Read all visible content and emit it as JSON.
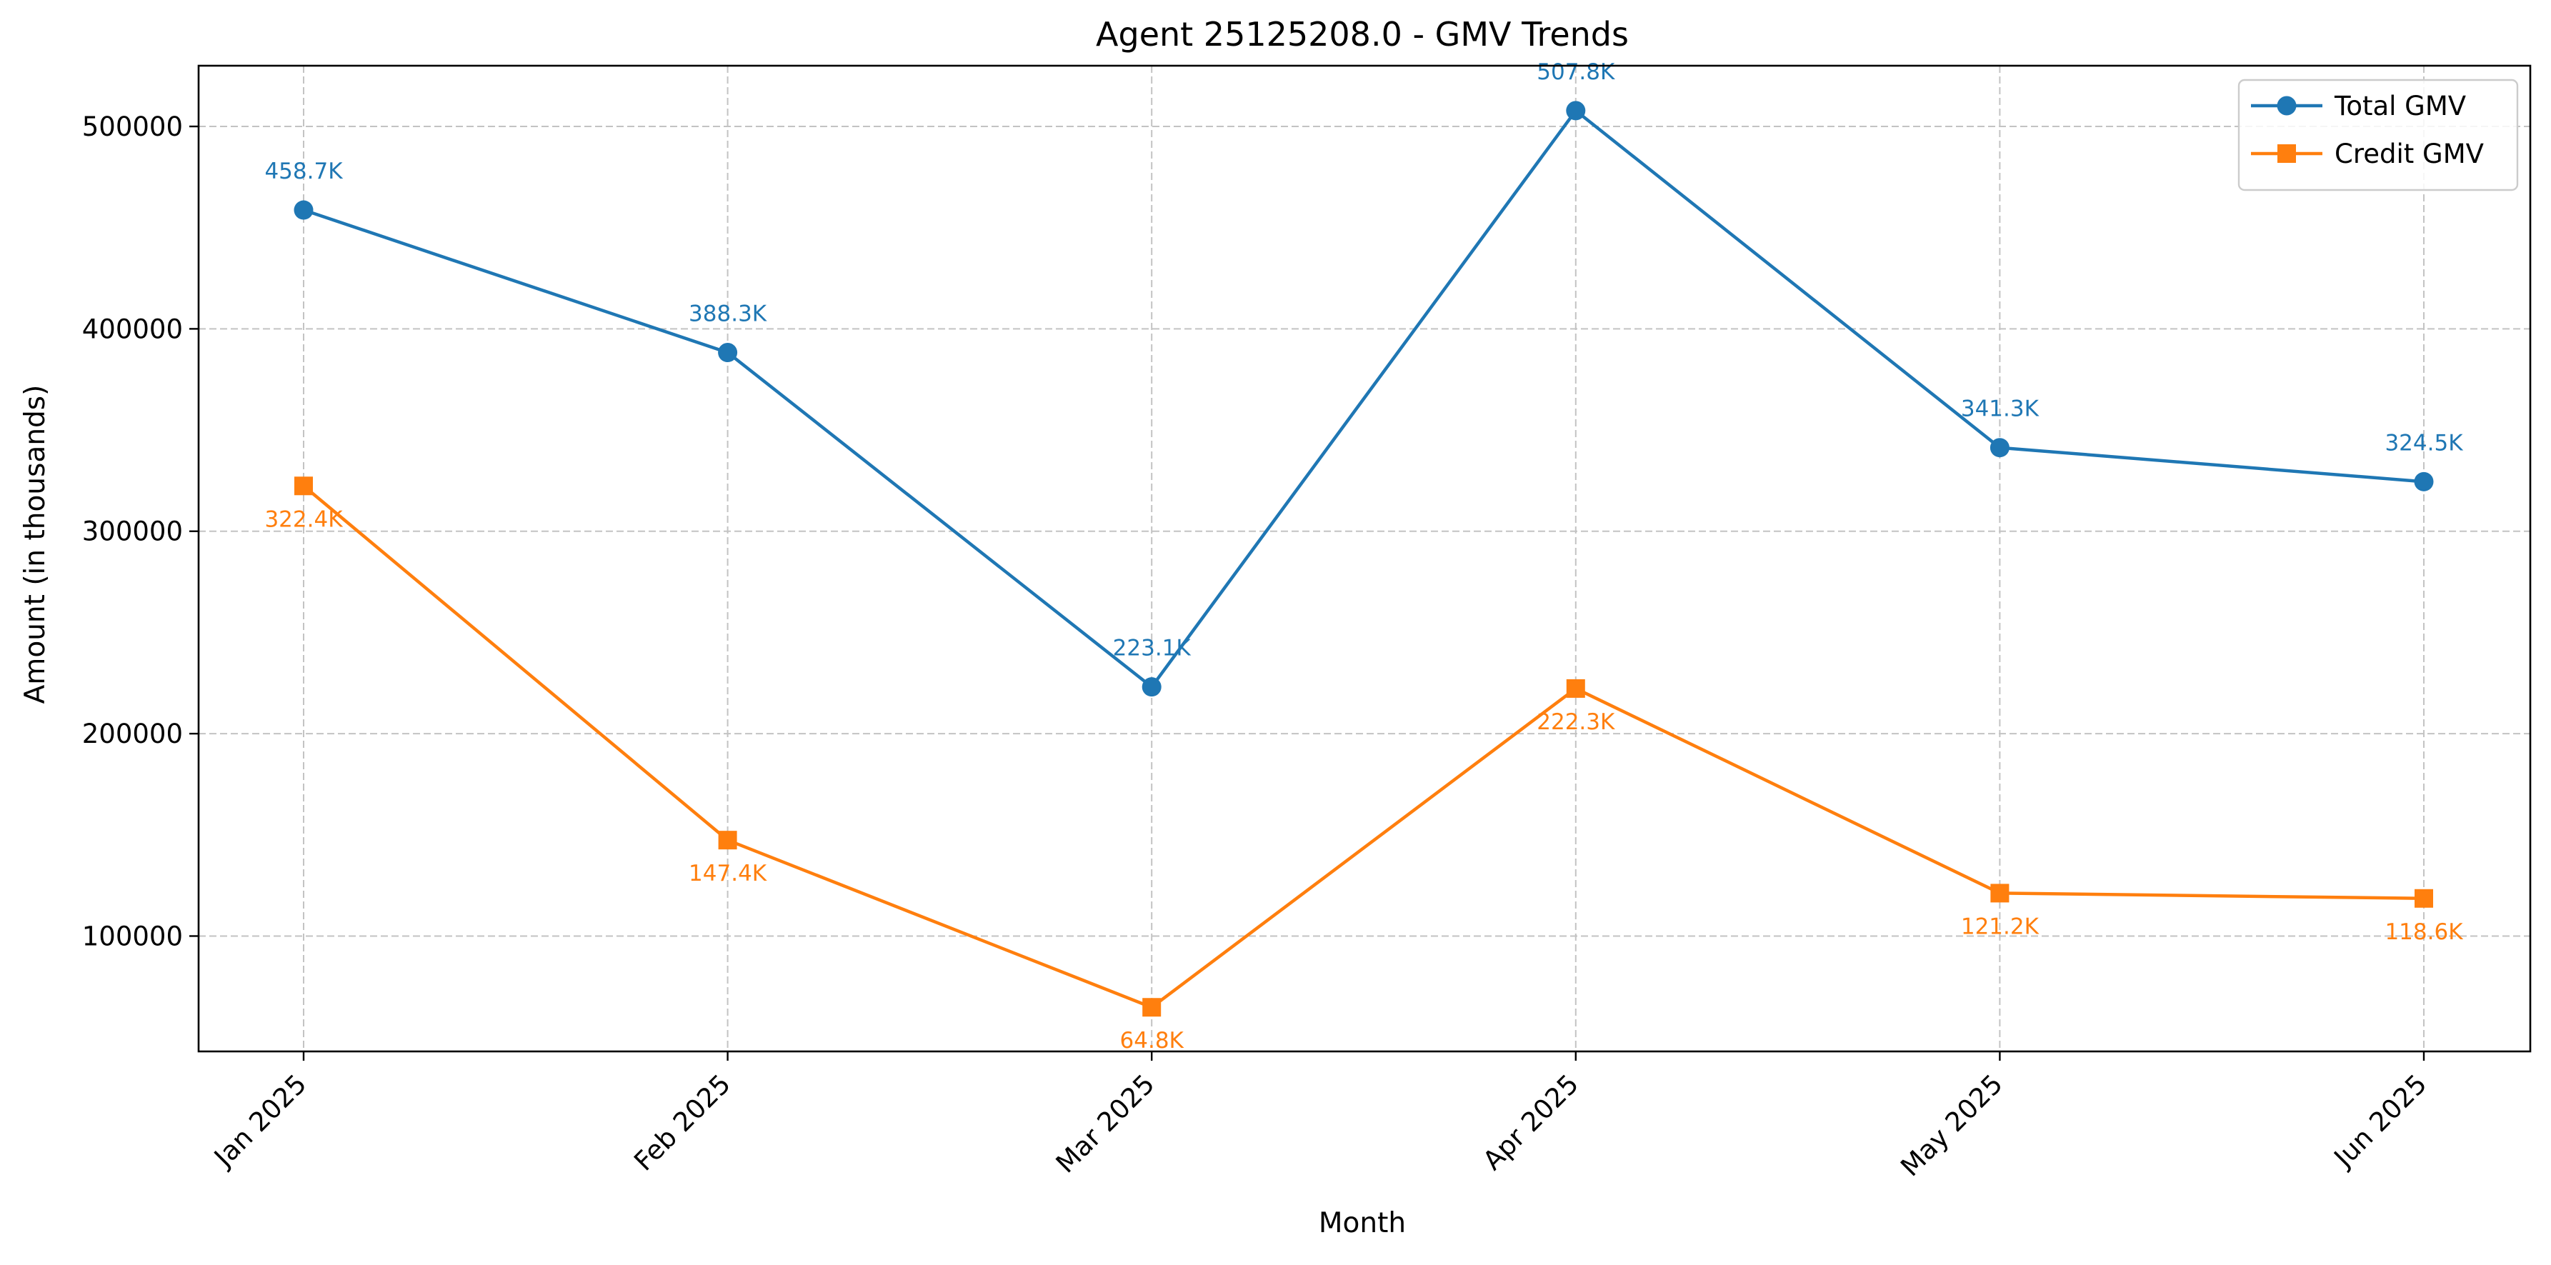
{
  "chart_data": {
    "type": "line",
    "title": "Agent 25125208.0 - GMV Trends",
    "xlabel": "Month",
    "ylabel": "Amount (in thousands)",
    "categories": [
      "Jan 2025",
      "Feb 2025",
      "Mar 2025",
      "Apr 2025",
      "May 2025",
      "Jun 2025"
    ],
    "ylim": [
      43000,
      530000
    ],
    "yticks": [
      100000,
      200000,
      300000,
      400000,
      500000
    ],
    "ytick_labels": [
      "100000",
      "200000",
      "300000",
      "400000",
      "500000"
    ],
    "grid": true,
    "legend_position": "top-right",
    "series": [
      {
        "name": "Total GMV",
        "color": "#1f77b4",
        "marker": "circle",
        "values": [
          458700,
          388300,
          223100,
          507800,
          341300,
          324500
        ],
        "labels": [
          "458.7K",
          "388.3K",
          "223.1K",
          "507.8K",
          "341.3K",
          "324.5K"
        ],
        "label_position": "above"
      },
      {
        "name": "Credit GMV",
        "color": "#ff7f0e",
        "marker": "square",
        "values": [
          322400,
          147400,
          64800,
          222300,
          121200,
          118600
        ],
        "labels": [
          "322.4K",
          "147.4K",
          "64.8K",
          "222.3K",
          "121.2K",
          "118.6K"
        ],
        "label_position": "below"
      }
    ]
  }
}
